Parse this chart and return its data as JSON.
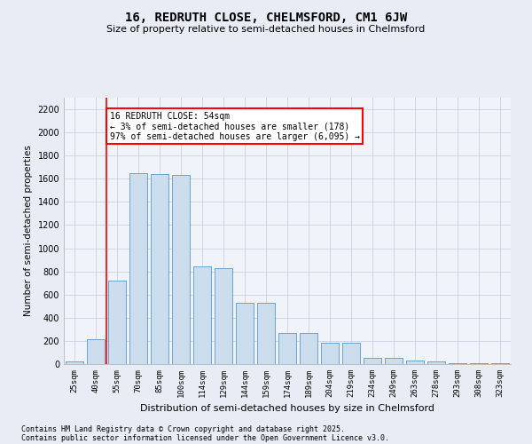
{
  "title": "16, REDRUTH CLOSE, CHELMSFORD, CM1 6JW",
  "subtitle": "Size of property relative to semi-detached houses in Chelmsford",
  "xlabel": "Distribution of semi-detached houses by size in Chelmsford",
  "ylabel": "Number of semi-detached properties",
  "categories": [
    "25sqm",
    "40sqm",
    "55sqm",
    "70sqm",
    "85sqm",
    "100sqm",
    "114sqm",
    "129sqm",
    "144sqm",
    "159sqm",
    "174sqm",
    "189sqm",
    "204sqm",
    "219sqm",
    "234sqm",
    "249sqm",
    "263sqm",
    "278sqm",
    "293sqm",
    "308sqm",
    "323sqm"
  ],
  "values": [
    25,
    215,
    720,
    1650,
    1640,
    1630,
    840,
    830,
    530,
    530,
    265,
    265,
    185,
    185,
    50,
    50,
    30,
    25,
    10,
    8,
    5
  ],
  "bar_color": "#ccdded",
  "bar_edge_color": "#5a9abf",
  "red_line_x": 1.5,
  "annotation_text": "16 REDRUTH CLOSE: 54sqm\n← 3% of semi-detached houses are smaller (178)\n97% of semi-detached houses are larger (6,095) →",
  "footnote1": "Contains HM Land Registry data © Crown copyright and database right 2025.",
  "footnote2": "Contains public sector information licensed under the Open Government Licence v3.0.",
  "ylim": [
    0,
    2300
  ],
  "yticks": [
    0,
    200,
    400,
    600,
    800,
    1000,
    1200,
    1400,
    1600,
    1800,
    2000,
    2200
  ],
  "bg_color": "#e8edf5",
  "plot_bg": "#f0f4fa",
  "grid_color": "#c0c8d8"
}
